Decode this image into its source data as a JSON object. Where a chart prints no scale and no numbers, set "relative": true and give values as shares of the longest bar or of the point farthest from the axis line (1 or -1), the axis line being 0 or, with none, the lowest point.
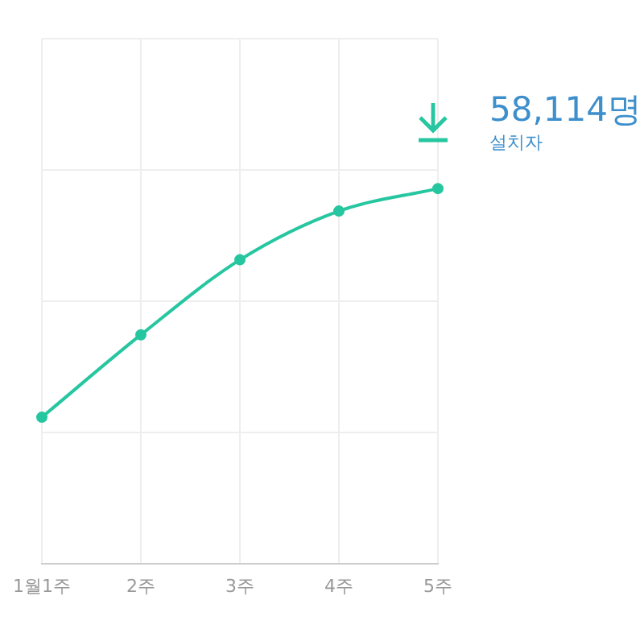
{
  "chart_data": {
    "type": "line",
    "categories": [
      "1월1주",
      "2주",
      "3주",
      "4주",
      "5주"
    ],
    "series": [
      {
        "color": "#26c6a0",
        "values": [
          0.39,
          0.61,
          0.81,
          0.94,
          1
        ]
      }
    ],
    "relative": true,
    "grid": true,
    "legend": false,
    "marker": "circle",
    "line_style": "solid",
    "annotations": [
      "58,114명",
      "설치자"
    ]
  }
}
